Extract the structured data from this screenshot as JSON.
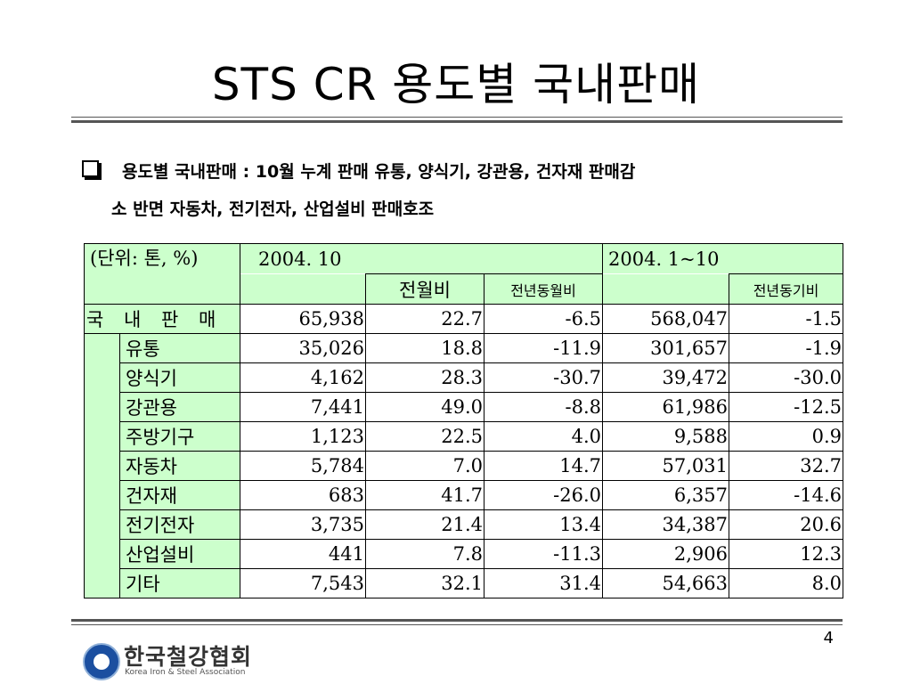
{
  "title": "STS CR 용도별 국내판매",
  "bullet": {
    "line1": "용도별 국내판매 : 10월 누계 판매 유통, 양식기, 강관용, 건자재 판매감",
    "line2": "소 반면 자동차, 전기전자, 산업설비 판매호조"
  },
  "table": {
    "unit_label": "(단위: 톤, %)",
    "period1": "2004. 10",
    "period2": "2004. 1~10",
    "col_mom": "전월비",
    "col_yoy_month": "전년동월비",
    "col_yoy_period": "전년동기비",
    "total": {
      "label": "국 내 판 매",
      "v1": "65,938",
      "v2": "22.7",
      "v3": "-6.5",
      "v4": "568,047",
      "v5": "-1.5"
    },
    "rows": [
      {
        "label": "유통",
        "v1": "35,026",
        "v2": "18.8",
        "v3": "-11.9",
        "v4": "301,657",
        "v5": "-1.9"
      },
      {
        "label": "양식기",
        "v1": "4,162",
        "v2": "28.3",
        "v3": "-30.7",
        "v4": "39,472",
        "v5": "-30.0"
      },
      {
        "label": "강관용",
        "v1": "7,441",
        "v2": "49.0",
        "v3": "-8.8",
        "v4": "61,986",
        "v5": "-12.5"
      },
      {
        "label": "주방기구",
        "v1": "1,123",
        "v2": "22.5",
        "v3": "4.0",
        "v4": "9,588",
        "v5": "0.9"
      },
      {
        "label": "자동차",
        "v1": "5,784",
        "v2": "7.0",
        "v3": "14.7",
        "v4": "57,031",
        "v5": "32.7"
      },
      {
        "label": "건자재",
        "v1": "683",
        "v2": "41.7",
        "v3": "-26.0",
        "v4": "6,357",
        "v5": "-14.6"
      },
      {
        "label": "전기전자",
        "v1": "3,735",
        "v2": "21.4",
        "v3": "13.4",
        "v4": "34,387",
        "v5": "20.6"
      },
      {
        "label": "산업설비",
        "v1": "441",
        "v2": "7.8",
        "v3": "-11.3",
        "v4": "2,906",
        "v5": "12.3"
      },
      {
        "label": "기타",
        "v1": "7,543",
        "v2": "32.1",
        "v3": "31.4",
        "v4": "54,663",
        "v5": "8.0"
      }
    ]
  },
  "page_number": "4",
  "logo": {
    "name": "한국철강협회",
    "subtitle": "Korea Iron & Steel Association",
    "accent_color": "#1b4fa0"
  },
  "colors": {
    "header_fill": "#ccffcc"
  }
}
